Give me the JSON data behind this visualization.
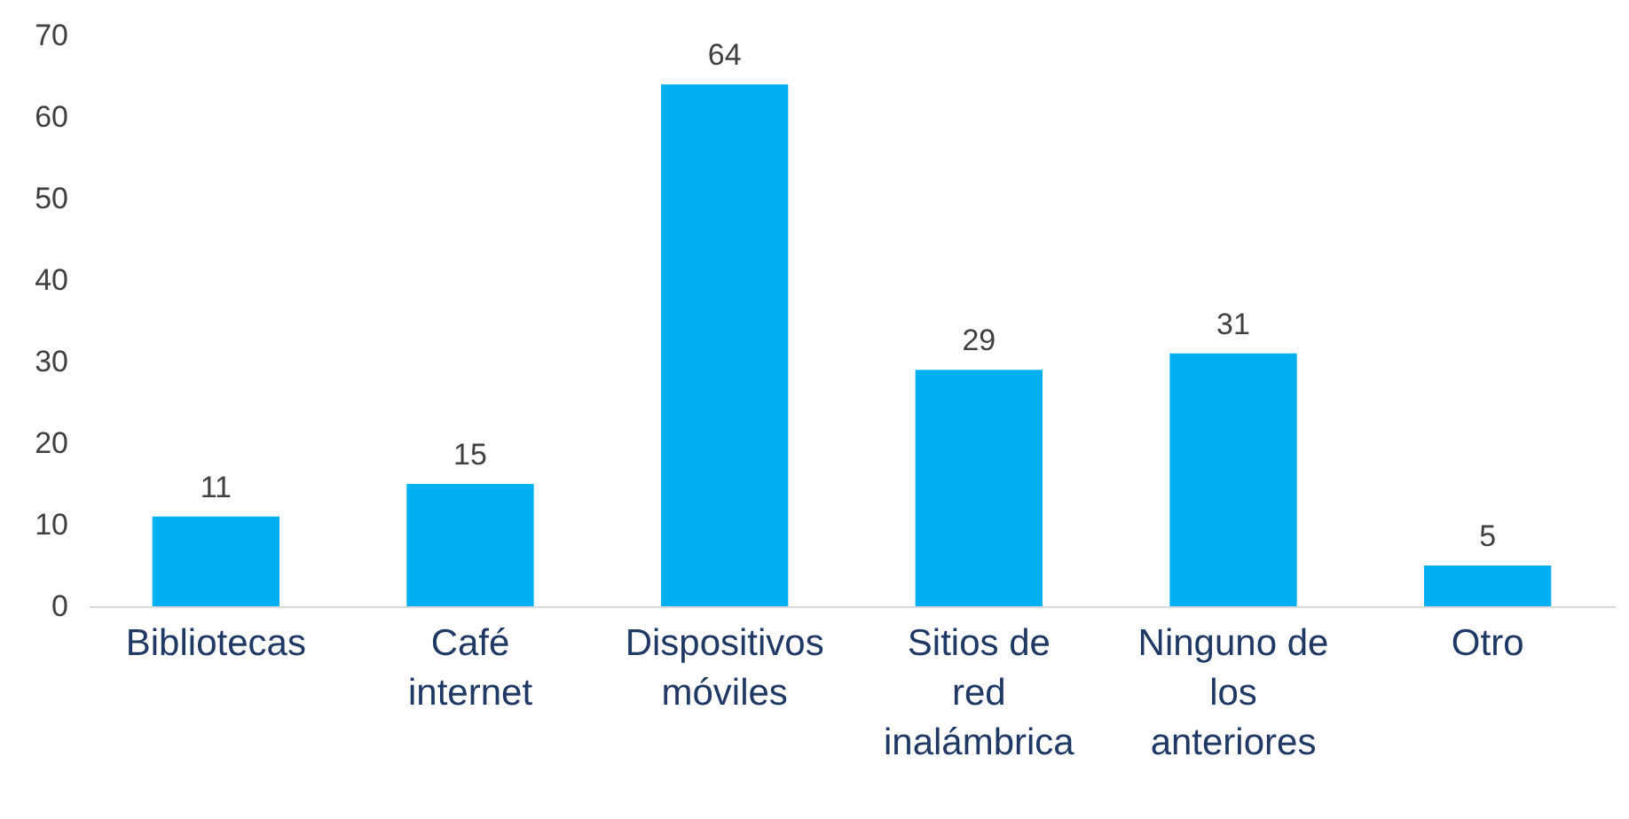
{
  "chart_data": {
    "type": "bar",
    "categories": [
      "Bibliotecas",
      "Café internet",
      "Dispositivos móviles",
      "Sitios de red inalámbrica",
      "Ninguno de los anteriores",
      "Otro"
    ],
    "values": [
      11,
      15,
      64,
      29,
      31,
      5
    ],
    "color": "#00b0f0",
    "ylim": [
      0,
      70
    ],
    "yticks": [
      0,
      10,
      20,
      30,
      40,
      50,
      60,
      70
    ],
    "grid": false,
    "data_labels": true
  }
}
